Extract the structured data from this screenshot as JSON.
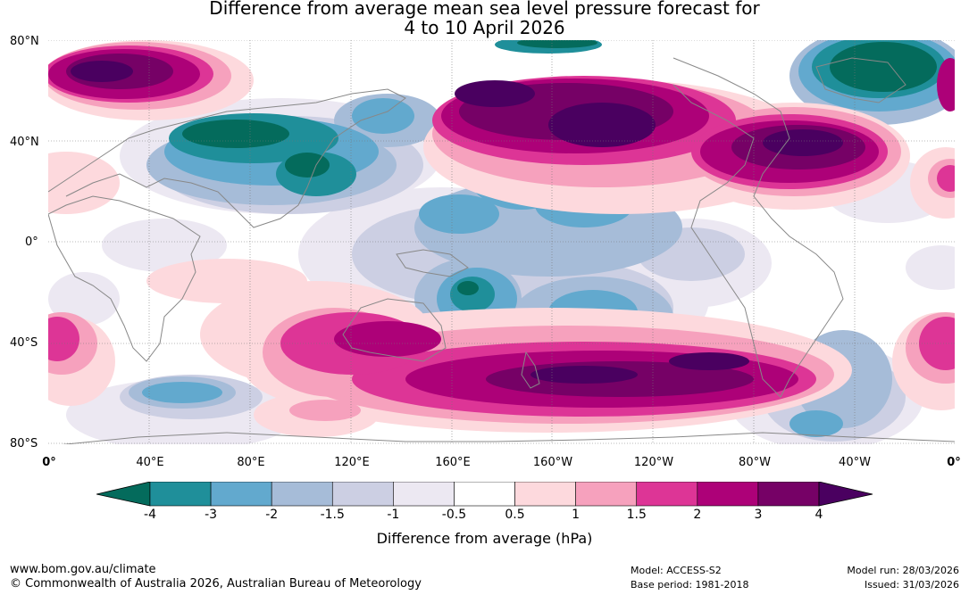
{
  "title": {
    "line1": "Difference from average mean sea level pressure forecast for",
    "line2": "4 to 10 April 2026"
  },
  "map": {
    "lat_labels": [
      "80°N",
      "40°N",
      "0°",
      "40°S",
      "80°S"
    ],
    "lon_labels": [
      "0°",
      "40°E",
      "80°E",
      "120°E",
      "160°E",
      "160°W",
      "120°W",
      "80°W",
      "40°W",
      "0°"
    ],
    "palette": {
      "lt-4": "#046b5c",
      "-4_-3": "#1f8f9a",
      "-3_-2": "#62a9ce",
      "-2_-1.5": "#a6bcd8",
      "-1.5_-1": "#cccfe3",
      "-1_-0.5": "#ece8f2",
      "-0.5_0.5": "#ffffff",
      "0.5_1": "#fdd9dd",
      "1_1.5": "#f6a1bd",
      "1.5_2": "#dd3596",
      "2_3": "#ad0178",
      "3_4": "#760166",
      "gt4": "#4a0060"
    },
    "coastline_color": "#888888"
  },
  "colorbar": {
    "ticks": [
      "-4",
      "-3",
      "-2",
      "-1.5",
      "-1",
      "-0.5",
      "0.5",
      "1",
      "1.5",
      "2",
      "3",
      "4"
    ],
    "colors": [
      "#1f8f9a",
      "#62a9ce",
      "#a6bcd8",
      "#cccfe3",
      "#ece8f2",
      "#ffffff",
      "#fdd9dd",
      "#f6a1bd",
      "#dd3596",
      "#ad0178",
      "#760166"
    ],
    "low_color": "#046b5c",
    "high_color": "#4a0060",
    "label": "Difference from average (hPa)"
  },
  "footer": {
    "url": "www.bom.gov.au/climate",
    "copyright": "© Commonwealth of Australia 2026, Australian Bureau of Meteorology",
    "model": "Model: ACCESS-S2",
    "base_period": "Base period: 1981-2018",
    "model_run": "Model run: 28/03/2026",
    "issued": "Issued: 31/03/2026"
  }
}
